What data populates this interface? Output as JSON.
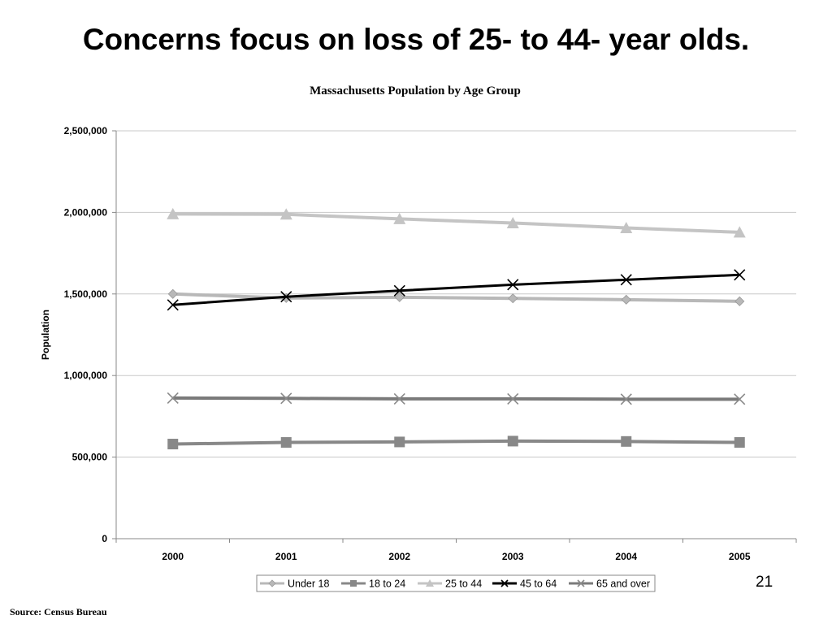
{
  "slide": {
    "title": "Concerns focus on loss of 25- to 44- year olds.",
    "page_number": "21",
    "source": "Source: Census Bureau"
  },
  "chart_data": {
    "type": "line",
    "title": "Massachusetts Population by Age Group",
    "xlabel": "",
    "ylabel": "Population",
    "categories": [
      "2000",
      "2001",
      "2002",
      "2003",
      "2004",
      "2005"
    ],
    "ylim": [
      0,
      2500000
    ],
    "yticks": [
      0,
      500000,
      1000000,
      1500000,
      2000000,
      2500000
    ],
    "ytick_labels": [
      "0",
      "500,000",
      "1,000,000",
      "1,500,000",
      "2,000,000",
      "2,500,000"
    ],
    "grid": true,
    "legend_position": "bottom",
    "series": [
      {
        "name": "Under 18",
        "color": "#b8b8b8",
        "marker": "diamond-icon",
        "values": [
          1500000,
          1475000,
          1480000,
          1473000,
          1465000,
          1455000
        ]
      },
      {
        "name": "18 to 24",
        "color": "#888888",
        "marker": "square-icon",
        "values": [
          580000,
          590000,
          593000,
          598000,
          596000,
          590000
        ]
      },
      {
        "name": "25 to 44",
        "color": "#c4c4c4",
        "marker": "triangle-icon",
        "values": [
          1990000,
          1988000,
          1960000,
          1935000,
          1905000,
          1878000
        ]
      },
      {
        "name": "45 to 64",
        "color": "#000000",
        "marker": "x-icon",
        "values": [
          1433000,
          1483000,
          1520000,
          1557000,
          1587000,
          1617000
        ]
      },
      {
        "name": "65 and over",
        "color": "#7a7a7a",
        "marker": "x-icon",
        "values": [
          862000,
          860000,
          857000,
          857000,
          855000,
          855000
        ]
      }
    ]
  }
}
